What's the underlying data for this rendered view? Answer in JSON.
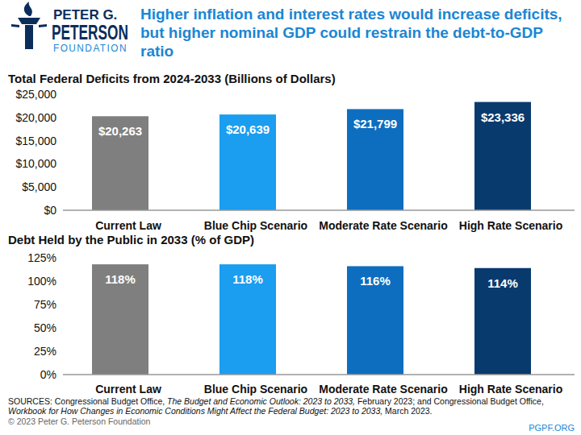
{
  "header": {
    "logo_lines": [
      "PETER G.",
      "PETERSON",
      "FOUNDATION"
    ],
    "title_lines": [
      "Higher inflation and interest rates would increase deficits,",
      "but higher nominal GDP could restrain the debt-to-GDP",
      "ratio"
    ]
  },
  "chart_data": [
    {
      "type": "bar",
      "title": "Total Federal Deficits from 2024-2033 (Billions of Dollars)",
      "categories": [
        "Current Law",
        "Blue Chip Scenario",
        "Moderate Rate Scenario",
        "High Rate Scenario"
      ],
      "values": [
        20263,
        20639,
        21799,
        23336
      ],
      "value_labels": [
        "$20,263",
        "$20,639",
        "$21,799",
        "$23,336"
      ],
      "colors": [
        "#7f7f7f",
        "#1b9df0",
        "#0d6ebf",
        "#083a6e"
      ],
      "ylim": [
        0,
        25000
      ],
      "yticks": [
        {
          "value": 0,
          "label": "$0"
        },
        {
          "value": 5000,
          "label": "$5,000"
        },
        {
          "value": 10000,
          "label": "$10,000"
        },
        {
          "value": 15000,
          "label": "$15,000"
        },
        {
          "value": 20000,
          "label": "$20,000"
        },
        {
          "value": 25000,
          "label": "$25,000"
        }
      ],
      "grid": false,
      "data_labels": true
    },
    {
      "type": "bar",
      "title": "Debt Held by the Public in 2033 (% of GDP)",
      "categories": [
        "Current Law",
        "Blue Chip Scenario",
        "Moderate Rate Scenario",
        "High Rate Scenario"
      ],
      "values": [
        118,
        118,
        116,
        114
      ],
      "value_labels": [
        "118%",
        "118%",
        "116%",
        "114%"
      ],
      "colors": [
        "#7f7f7f",
        "#1b9df0",
        "#0d6ebf",
        "#083a6e"
      ],
      "ylim": [
        0,
        125
      ],
      "yticks": [
        {
          "value": 0,
          "label": "0%"
        },
        {
          "value": 25,
          "label": "25%"
        },
        {
          "value": 50,
          "label": "50%"
        },
        {
          "value": 75,
          "label": "75%"
        },
        {
          "value": 100,
          "label": "100%"
        },
        {
          "value": 125,
          "label": "125%"
        }
      ],
      "grid": false,
      "data_labels": true
    }
  ],
  "sources": [
    [
      {
        "text": "SOURCES: Congressional Budget Office, ",
        "italic": false
      },
      {
        "text": "The Budget and Economic Outlook: 2023 to 2033,",
        "italic": true
      },
      {
        "text": " February 2023; and Congressional Budget Office,",
        "italic": false
      }
    ],
    [
      {
        "text": "Workbook for How Changes in Economic Conditions Might Affect the Federal Budget: 2023 to 2033,",
        "italic": true
      },
      {
        "text": " March 2023.",
        "italic": false
      }
    ]
  ],
  "copyright": "© 2023 Peter G. Peterson Foundation",
  "site": "PGPF.ORG"
}
